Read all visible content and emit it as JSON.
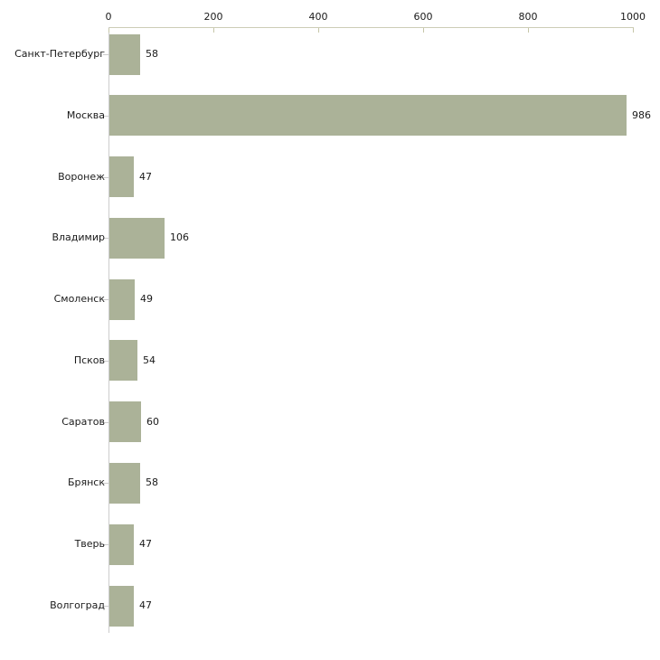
{
  "chart_data": {
    "type": "bar",
    "orientation": "horizontal",
    "title": "",
    "xlabel": "",
    "ylabel": "",
    "categories": [
      "Санкт-Петербург",
      "Москва",
      "Воронеж",
      "Владимир",
      "Смоленск",
      "Псков",
      "Саратов",
      "Брянск",
      "Тверь",
      "Волгоград"
    ],
    "values": [
      58,
      986,
      47,
      106,
      49,
      54,
      60,
      58,
      47,
      47
    ],
    "value_labels": [
      "58",
      "986",
      "47",
      "106",
      "49",
      "54",
      "60",
      "58",
      "47",
      "47"
    ],
    "x_ticks": [
      0,
      200,
      400,
      600,
      800,
      1000
    ],
    "x_tick_labels": [
      "0",
      "200",
      "400",
      "600",
      "800",
      "1000"
    ],
    "xlim": [
      0,
      1000
    ],
    "grid": false,
    "legend": false,
    "axis_position": "top",
    "colors": {
      "bar_fill": "#abb298",
      "x_axis": "#cdcdb6",
      "x_tick": "#c6c6a8",
      "y_axis": "#cccccc",
      "cat_tick": "#cccccc",
      "text": "#1a1a1a",
      "background": "#ffffff"
    }
  }
}
